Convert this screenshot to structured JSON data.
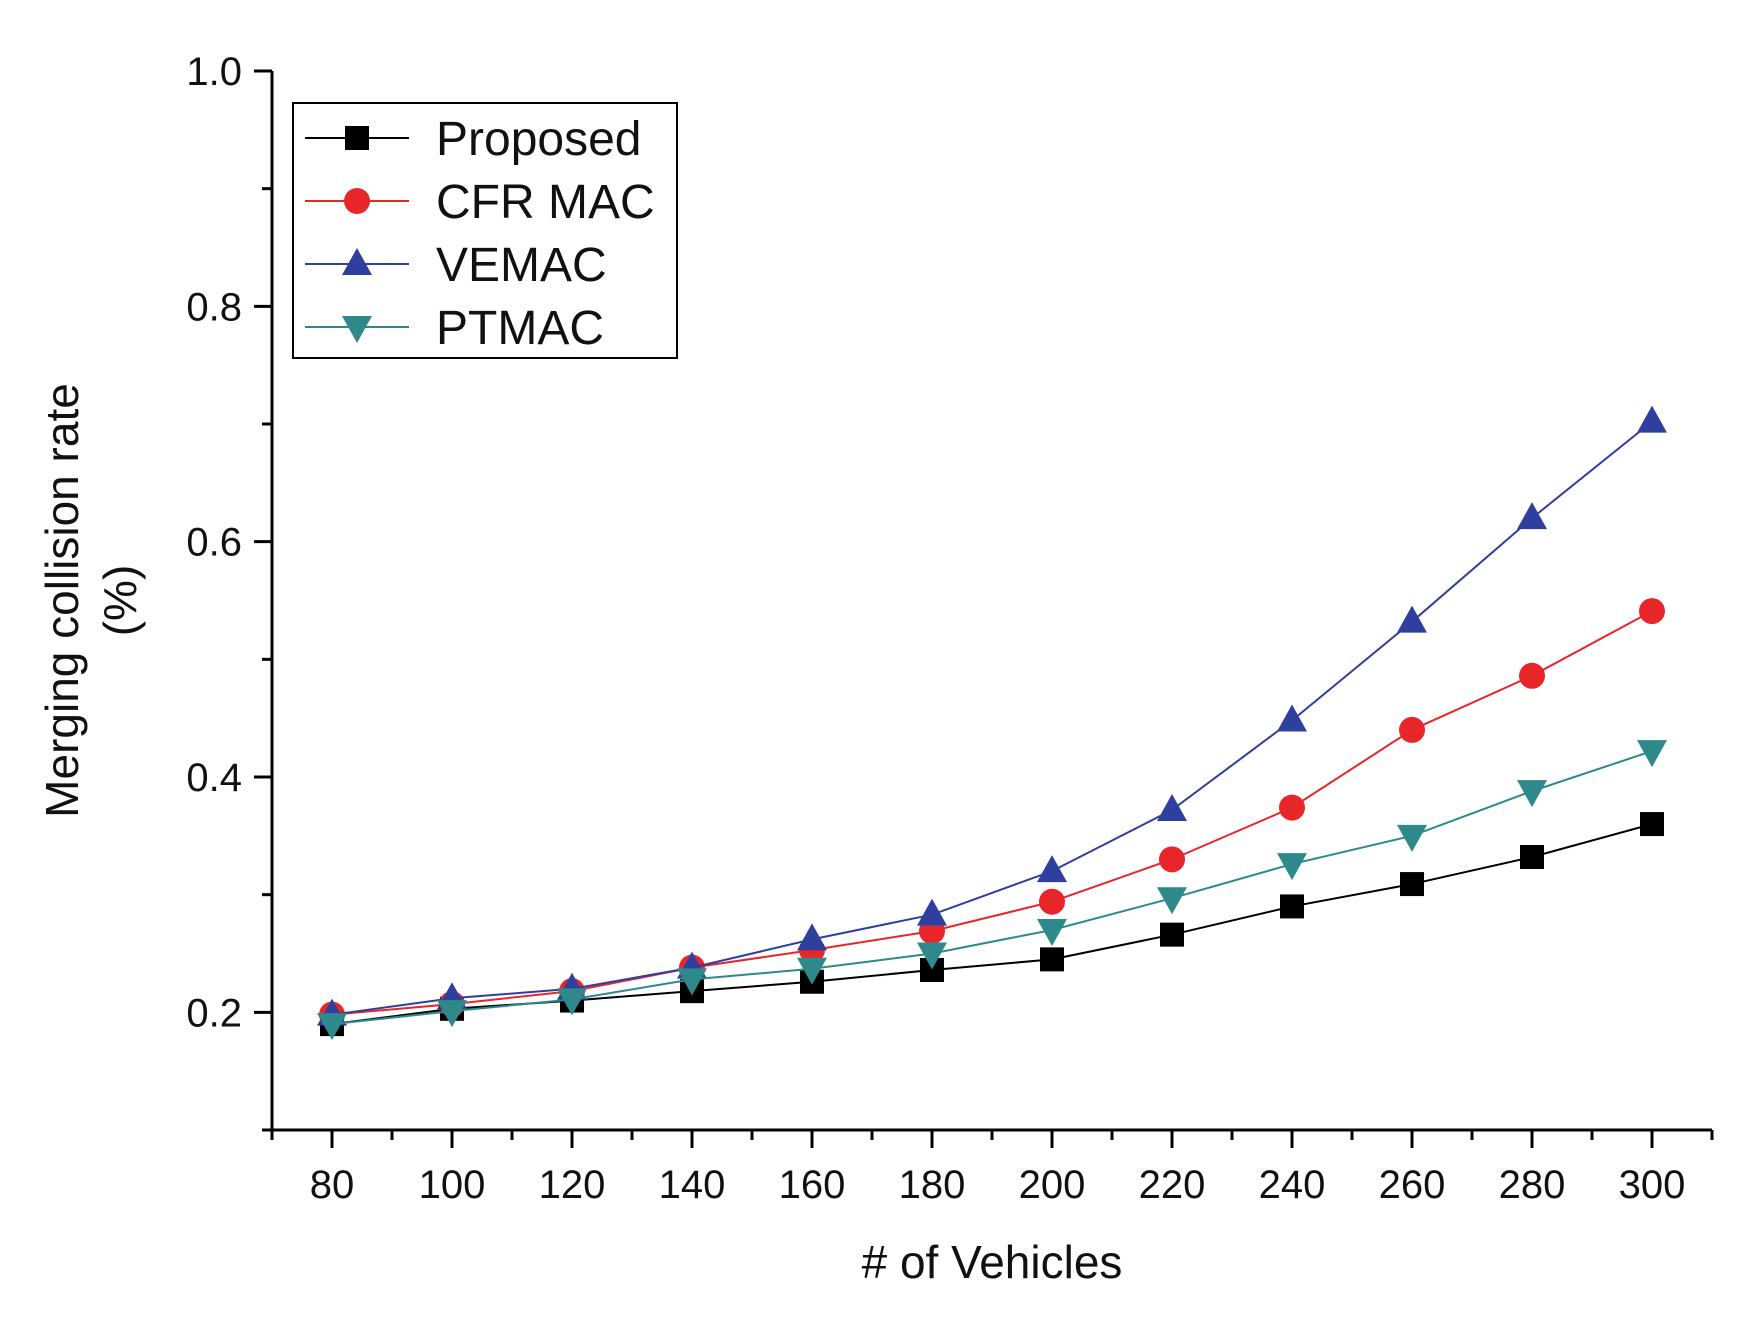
{
  "chart_data": {
    "type": "line",
    "title": "",
    "xlabel": "# of Vehicles",
    "ylabel": [
      "Merging collision rate",
      "(%)"
    ],
    "x": [
      80,
      100,
      120,
      140,
      160,
      180,
      200,
      220,
      240,
      260,
      280,
      300
    ],
    "xticks": [
      80,
      100,
      120,
      140,
      160,
      180,
      200,
      220,
      240,
      260,
      280,
      300
    ],
    "xlim": [
      70,
      310
    ],
    "ylim": [
      0.1,
      1.0
    ],
    "yticks": [
      0.2,
      0.4,
      0.6,
      0.8,
      1.0
    ],
    "ytick_labels": [
      "0.2",
      "0.4",
      "0.6",
      "0.8",
      "1.0"
    ],
    "legend_position": "top-left",
    "grid": false,
    "series": [
      {
        "name": "Proposed",
        "color": "#000000",
        "marker": "square",
        "values": [
          0.19,
          0.203,
          0.21,
          0.218,
          0.226,
          0.236,
          0.245,
          0.266,
          0.29,
          0.309,
          0.332,
          0.36
        ]
      },
      {
        "name": "CFR MAC",
        "color": "#e8262a",
        "marker": "circle",
        "values": [
          0.198,
          0.207,
          0.218,
          0.238,
          0.253,
          0.269,
          0.294,
          0.33,
          0.374,
          0.44,
          0.486,
          0.541
        ]
      },
      {
        "name": "VEMAC",
        "color": "#2e3f9e",
        "marker": "triangle-up",
        "values": [
          0.198,
          0.212,
          0.22,
          0.238,
          0.262,
          0.283,
          0.32,
          0.372,
          0.448,
          0.532,
          0.62,
          0.702
        ]
      },
      {
        "name": "PTMAC",
        "color": "#2e8a8a",
        "marker": "triangle-down",
        "values": [
          0.19,
          0.201,
          0.211,
          0.228,
          0.237,
          0.25,
          0.27,
          0.297,
          0.326,
          0.35,
          0.388,
          0.422
        ]
      }
    ]
  }
}
